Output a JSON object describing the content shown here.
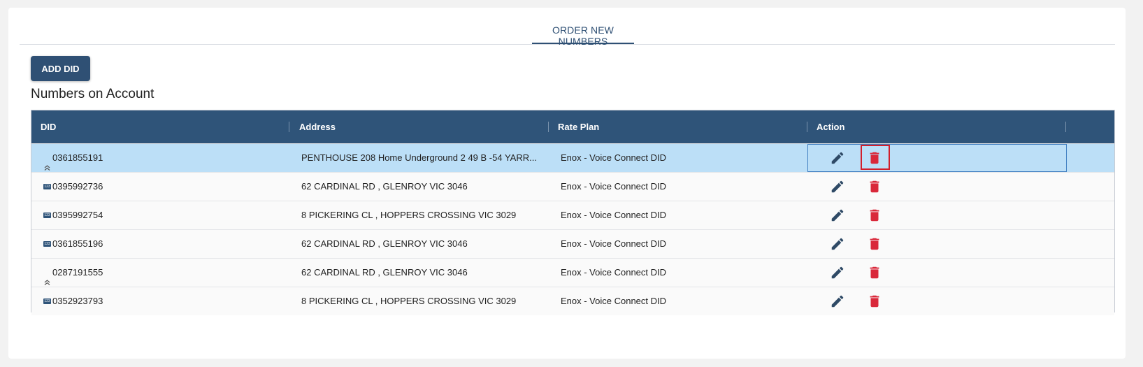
{
  "tabs": [
    {
      "label": "ORDER NEW NUMBERS",
      "active": true
    }
  ],
  "add_button": {
    "label": "ADD DID"
  },
  "section_title": "Numbers on Account",
  "table": {
    "columns": {
      "did": "DID",
      "address": "Address",
      "rate_plan": "Rate Plan",
      "action": "Action"
    },
    "rows": [
      {
        "did": "0361855191",
        "icon": "chevron-up-icon",
        "address": "PENTHOUSE 208 Home Underground 2 49 B -54 YARR...",
        "rate_plan": "Enox - Voice Connect DID",
        "selected": true
      },
      {
        "did": "0395992736",
        "icon": "keypad-icon",
        "address": "62 CARDINAL RD , GLENROY VIC 3046",
        "rate_plan": "Enox - Voice Connect DID",
        "selected": false
      },
      {
        "did": "0395992754",
        "icon": "keypad-icon",
        "address": "8 PICKERING CL , HOPPERS CROSSING VIC 3029",
        "rate_plan": "Enox - Voice Connect DID",
        "selected": false
      },
      {
        "did": "0361855196",
        "icon": "keypad-icon",
        "address": "62 CARDINAL RD , GLENROY VIC 3046",
        "rate_plan": "Enox - Voice Connect DID",
        "selected": false
      },
      {
        "did": "0287191555",
        "icon": "chevron-up-icon",
        "address": "62 CARDINAL RD , GLENROY VIC 3046",
        "rate_plan": "Enox - Voice Connect DID",
        "selected": false
      },
      {
        "did": "0352923793",
        "icon": "keypad-icon",
        "address": "8 PICKERING CL , HOPPERS CROSSING VIC 3029",
        "rate_plan": "Enox - Voice Connect DID",
        "selected": false
      }
    ]
  },
  "icons": {
    "keypad_glyph": "123"
  },
  "colors": {
    "primary": "#2f5479",
    "delete": "#d9283a",
    "edit": "#2f4a66",
    "selected_row": "#bcdff7",
    "highlight": "#d21f2b"
  }
}
